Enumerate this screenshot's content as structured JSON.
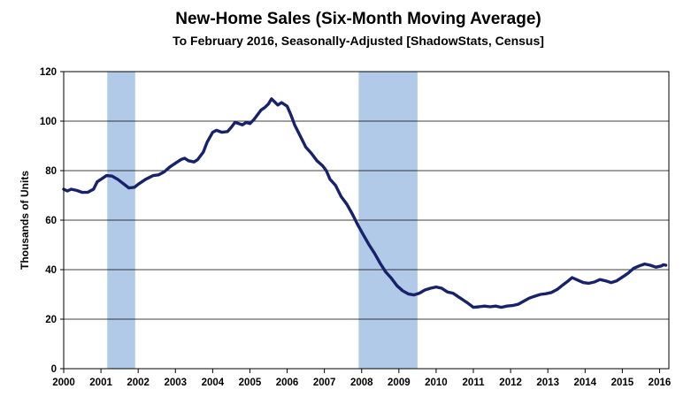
{
  "chart_data": {
    "type": "line",
    "title": "New-Home Sales (Six-Month Moving Average)",
    "subtitle": "To February 2016, Seasonally-Adjusted [ShadowStats, Census]",
    "xlabel": "",
    "ylabel": "Thousands of Units",
    "xlim": [
      2000.0,
      2016.25
    ],
    "ylim": [
      0,
      120
    ],
    "x_ticks": [
      "2000",
      "2001",
      "2002",
      "2003",
      "2004",
      "2005",
      "2006",
      "2007",
      "2008",
      "2009",
      "2010",
      "2011",
      "2012",
      "2013",
      "2014",
      "2015",
      "2016"
    ],
    "y_ticks": [
      "0",
      "20",
      "40",
      "60",
      "80",
      "100",
      "120"
    ],
    "grid": "horizontal",
    "recessions": [
      {
        "start": 2001.17,
        "end": 2001.92
      },
      {
        "start": 2007.92,
        "end": 2009.5
      }
    ],
    "series": [
      {
        "name": "",
        "color": "#17226b",
        "points": [
          [
            2000.0,
            72.5
          ],
          [
            2000.1,
            71.8
          ],
          [
            2000.2,
            72.5
          ],
          [
            2000.35,
            72.0
          ],
          [
            2000.5,
            71.2
          ],
          [
            2000.65,
            71.3
          ],
          [
            2000.8,
            72.5
          ],
          [
            2000.9,
            75.5
          ],
          [
            2001.0,
            76.5
          ],
          [
            2001.15,
            78.0
          ],
          [
            2001.3,
            77.8
          ],
          [
            2001.45,
            76.5
          ],
          [
            2001.6,
            74.8
          ],
          [
            2001.75,
            73.0
          ],
          [
            2001.9,
            73.3
          ],
          [
            2002.0,
            74.5
          ],
          [
            2002.2,
            76.5
          ],
          [
            2002.4,
            78.0
          ],
          [
            2002.55,
            78.3
          ],
          [
            2002.7,
            79.5
          ],
          [
            2002.85,
            81.5
          ],
          [
            2003.0,
            83.0
          ],
          [
            2003.15,
            84.5
          ],
          [
            2003.25,
            85.0
          ],
          [
            2003.35,
            84.0
          ],
          [
            2003.5,
            83.5
          ],
          [
            2003.6,
            84.5
          ],
          [
            2003.75,
            87.5
          ],
          [
            2003.85,
            91.5
          ],
          [
            2004.0,
            95.5
          ],
          [
            2004.1,
            96.3
          ],
          [
            2004.25,
            95.5
          ],
          [
            2004.4,
            95.8
          ],
          [
            2004.5,
            97.5
          ],
          [
            2004.6,
            99.5
          ],
          [
            2004.7,
            99.0
          ],
          [
            2004.8,
            98.5
          ],
          [
            2004.9,
            99.5
          ],
          [
            2005.0,
            99.0
          ],
          [
            2005.1,
            100.5
          ],
          [
            2005.2,
            102.5
          ],
          [
            2005.3,
            104.5
          ],
          [
            2005.4,
            105.5
          ],
          [
            2005.5,
            107.0
          ],
          [
            2005.58,
            109.0
          ],
          [
            2005.65,
            108.0
          ],
          [
            2005.75,
            106.5
          ],
          [
            2005.85,
            107.5
          ],
          [
            2006.0,
            106.0
          ],
          [
            2006.1,
            102.5
          ],
          [
            2006.2,
            98.5
          ],
          [
            2006.35,
            94.0
          ],
          [
            2006.5,
            89.5
          ],
          [
            2006.65,
            87.0
          ],
          [
            2006.8,
            84.0
          ],
          [
            2006.95,
            82.0
          ],
          [
            2007.05,
            80.0
          ],
          [
            2007.15,
            76.5
          ],
          [
            2007.3,
            74.0
          ],
          [
            2007.45,
            69.5
          ],
          [
            2007.6,
            66.5
          ],
          [
            2007.75,
            62.5
          ],
          [
            2007.9,
            58.0
          ],
          [
            2008.05,
            54.0
          ],
          [
            2008.2,
            50.0
          ],
          [
            2008.35,
            46.5
          ],
          [
            2008.5,
            42.5
          ],
          [
            2008.65,
            39.0
          ],
          [
            2008.8,
            36.5
          ],
          [
            2008.95,
            33.5
          ],
          [
            2009.1,
            31.5
          ],
          [
            2009.25,
            30.2
          ],
          [
            2009.4,
            29.8
          ],
          [
            2009.55,
            30.5
          ],
          [
            2009.7,
            31.8
          ],
          [
            2009.85,
            32.5
          ],
          [
            2010.0,
            33.0
          ],
          [
            2010.15,
            32.5
          ],
          [
            2010.3,
            31.0
          ],
          [
            2010.45,
            30.5
          ],
          [
            2010.6,
            29.0
          ],
          [
            2010.75,
            27.5
          ],
          [
            2010.85,
            26.5
          ],
          [
            2011.0,
            24.8
          ],
          [
            2011.15,
            25.0
          ],
          [
            2011.3,
            25.3
          ],
          [
            2011.45,
            25.0
          ],
          [
            2011.6,
            25.3
          ],
          [
            2011.75,
            24.8
          ],
          [
            2011.9,
            25.3
          ],
          [
            2012.05,
            25.5
          ],
          [
            2012.2,
            26.0
          ],
          [
            2012.35,
            27.2
          ],
          [
            2012.5,
            28.5
          ],
          [
            2012.65,
            29.3
          ],
          [
            2012.8,
            30.0
          ],
          [
            2012.95,
            30.3
          ],
          [
            2013.1,
            30.8
          ],
          [
            2013.25,
            32.0
          ],
          [
            2013.4,
            33.8
          ],
          [
            2013.55,
            35.5
          ],
          [
            2013.65,
            36.8
          ],
          [
            2013.8,
            35.8
          ],
          [
            2013.95,
            34.8
          ],
          [
            2014.1,
            34.5
          ],
          [
            2014.25,
            35.0
          ],
          [
            2014.4,
            36.0
          ],
          [
            2014.55,
            35.5
          ],
          [
            2014.7,
            34.8
          ],
          [
            2014.85,
            35.5
          ],
          [
            2015.0,
            37.0
          ],
          [
            2015.15,
            38.5
          ],
          [
            2015.3,
            40.5
          ],
          [
            2015.45,
            41.5
          ],
          [
            2015.6,
            42.3
          ],
          [
            2015.75,
            41.8
          ],
          [
            2015.9,
            41.0
          ],
          [
            2016.05,
            41.5
          ],
          [
            2016.1,
            42.0
          ],
          [
            2016.17,
            41.8
          ]
        ]
      }
    ]
  }
}
